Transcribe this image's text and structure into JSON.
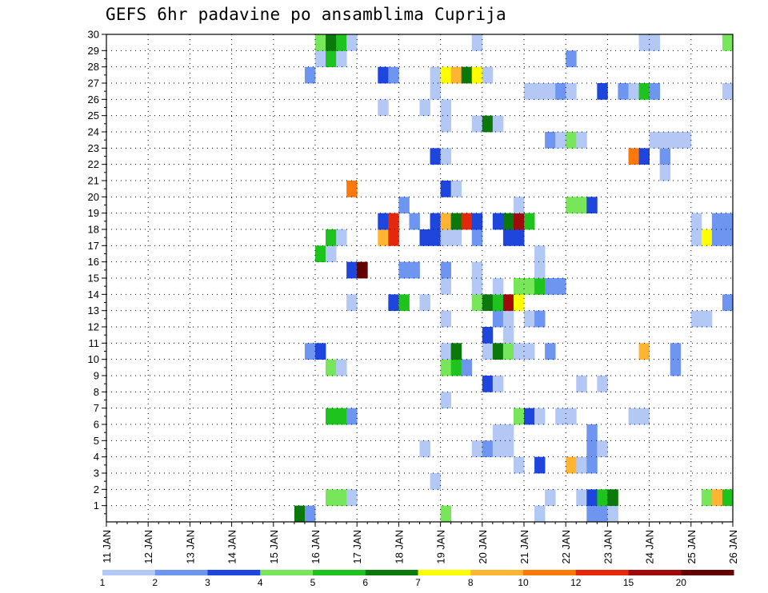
{
  "chart_data": {
    "type": "heatmap",
    "title": "GEFS 6hr padavine po ansamblima Cuprija",
    "xlabel": "",
    "ylabel": "",
    "x_range": [
      "11 JAN 00Z",
      "26 JAN 00Z"
    ],
    "x_ticks": [
      "11 JAN",
      "12 JAN",
      "13 JAN",
      "14 JAN",
      "15 JAN",
      "16 JAN",
      "17 JAN",
      "18 JAN",
      "19 JAN",
      "20 JAN",
      "21 JAN",
      "22 JAN",
      "23 JAN",
      "24 JAN",
      "25 JAN",
      "26 JAN"
    ],
    "y_ticks": [
      "1",
      "2",
      "3",
      "4",
      "5",
      "6",
      "7",
      "8",
      "9",
      "10",
      "11",
      "12",
      "13",
      "14",
      "15",
      "16",
      "17",
      "18",
      "19",
      "20",
      "21",
      "22",
      "23",
      "24",
      "25",
      "26",
      "27",
      "28",
      "29",
      "30"
    ],
    "y_range": [
      0,
      30
    ],
    "grid": true,
    "time_step_hours": 6,
    "levels": [
      "1",
      "2",
      "3",
      "4",
      "5",
      "6",
      "7",
      "8",
      "10",
      "12",
      "15",
      "20"
    ],
    "level_colors": [
      "#b4c8f5",
      "#6e96f0",
      "#1e46dc",
      "#78e65a",
      "#1ec31e",
      "#0a780a",
      "#ffff00",
      "#ffb432",
      "#ff780a",
      "#e6280a",
      "#a00a0a",
      "#640000"
    ],
    "cells": [
      {
        "m": 0,
        "t": "15 JAN 12Z",
        "c": 5
      },
      {
        "m": 0,
        "t": "15 JAN 18Z",
        "c": 1
      },
      {
        "m": 0,
        "t": "19 JAN 00Z",
        "c": 3
      },
      {
        "m": 0,
        "t": "21 JAN 06Z",
        "c": 0
      },
      {
        "m": 0,
        "t": "22 JAN 12Z",
        "c": 1
      },
      {
        "m": 0,
        "t": "22 JAN 18Z",
        "c": 1
      },
      {
        "m": 0,
        "t": "23 JAN 00Z",
        "c": 0
      },
      {
        "m": 1,
        "t": "16 JAN 06Z",
        "c": 3
      },
      {
        "m": 1,
        "t": "16 JAN 12Z",
        "c": 3
      },
      {
        "m": 1,
        "t": "16 JAN 18Z",
        "c": 0
      },
      {
        "m": 1,
        "t": "21 JAN 12Z",
        "c": 0
      },
      {
        "m": 1,
        "t": "22 JAN 06Z",
        "c": 0
      },
      {
        "m": 1,
        "t": "22 JAN 12Z",
        "c": 2
      },
      {
        "m": 1,
        "t": "22 JAN 18Z",
        "c": 4
      },
      {
        "m": 1,
        "t": "23 JAN 00Z",
        "c": 5
      },
      {
        "m": 1,
        "t": "25 JAN 06Z",
        "c": 3
      },
      {
        "m": 1,
        "t": "25 JAN 12Z",
        "c": 7
      },
      {
        "m": 1,
        "t": "25 JAN 18Z",
        "c": 4
      },
      {
        "m": 2,
        "t": "18 JAN 18Z",
        "c": 0
      },
      {
        "m": 3,
        "t": "20 JAN 18Z",
        "c": 0
      },
      {
        "m": 3,
        "t": "21 JAN 06Z",
        "c": 2
      },
      {
        "m": 3,
        "t": "22 JAN 00Z",
        "c": 7
      },
      {
        "m": 3,
        "t": "22 JAN 06Z",
        "c": 0
      },
      {
        "m": 3,
        "t": "22 JAN 12Z",
        "c": 1
      },
      {
        "m": 4,
        "t": "18 JAN 12Z",
        "c": 0
      },
      {
        "m": 4,
        "t": "19 JAN 18Z",
        "c": 0
      },
      {
        "m": 4,
        "t": "20 JAN 00Z",
        "c": 1
      },
      {
        "m": 4,
        "t": "20 JAN 06Z",
        "c": 0
      },
      {
        "m": 4,
        "t": "20 JAN 12Z",
        "c": 0
      },
      {
        "m": 4,
        "t": "22 JAN 12Z",
        "c": 1
      },
      {
        "m": 4,
        "t": "22 JAN 18Z",
        "c": 0
      },
      {
        "m": 5,
        "t": "20 JAN 06Z",
        "c": 0
      },
      {
        "m": 5,
        "t": "20 JAN 12Z",
        "c": 0
      },
      {
        "m": 5,
        "t": "22 JAN 12Z",
        "c": 1
      },
      {
        "m": 6,
        "t": "16 JAN 06Z",
        "c": 4
      },
      {
        "m": 6,
        "t": "16 JAN 12Z",
        "c": 4
      },
      {
        "m": 6,
        "t": "16 JAN 18Z",
        "c": 1
      },
      {
        "m": 6,
        "t": "20 JAN 18Z",
        "c": 3
      },
      {
        "m": 6,
        "t": "21 JAN 00Z",
        "c": 2
      },
      {
        "m": 6,
        "t": "21 JAN 06Z",
        "c": 0
      },
      {
        "m": 6,
        "t": "21 JAN 18Z",
        "c": 0
      },
      {
        "m": 6,
        "t": "22 JAN 00Z",
        "c": 0
      },
      {
        "m": 6,
        "t": "23 JAN 12Z",
        "c": 0
      },
      {
        "m": 6,
        "t": "23 JAN 18Z",
        "c": 0
      },
      {
        "m": 7,
        "t": "19 JAN 00Z",
        "c": 0
      },
      {
        "m": 8,
        "t": "20 JAN 00Z",
        "c": 2
      },
      {
        "m": 8,
        "t": "20 JAN 06Z",
        "c": 0
      },
      {
        "m": 8,
        "t": "22 JAN 06Z",
        "c": 0
      },
      {
        "m": 8,
        "t": "22 JAN 18Z",
        "c": 0
      },
      {
        "m": 9,
        "t": "16 JAN 06Z",
        "c": 3
      },
      {
        "m": 9,
        "t": "16 JAN 12Z",
        "c": 0
      },
      {
        "m": 9,
        "t": "19 JAN 00Z",
        "c": 3
      },
      {
        "m": 9,
        "t": "19 JAN 06Z",
        "c": 4
      },
      {
        "m": 9,
        "t": "19 JAN 12Z",
        "c": 1
      },
      {
        "m": 9,
        "t": "24 JAN 12Z",
        "c": 1
      },
      {
        "m": 10,
        "t": "15 JAN 18Z",
        "c": 1
      },
      {
        "m": 10,
        "t": "16 JAN 00Z",
        "c": 2
      },
      {
        "m": 10,
        "t": "19 JAN 00Z",
        "c": 0
      },
      {
        "m": 10,
        "t": "19 JAN 06Z",
        "c": 5
      },
      {
        "m": 10,
        "t": "20 JAN 00Z",
        "c": 0
      },
      {
        "m": 10,
        "t": "20 JAN 06Z",
        "c": 5
      },
      {
        "m": 10,
        "t": "20 JAN 12Z",
        "c": 3
      },
      {
        "m": 10,
        "t": "20 JAN 18Z",
        "c": 0
      },
      {
        "m": 10,
        "t": "21 JAN 00Z",
        "c": 0
      },
      {
        "m": 10,
        "t": "21 JAN 12Z",
        "c": 1
      },
      {
        "m": 10,
        "t": "23 JAN 18Z",
        "c": 7
      },
      {
        "m": 10,
        "t": "24 JAN 12Z",
        "c": 1
      },
      {
        "m": 11,
        "t": "20 JAN 00Z",
        "c": 2
      },
      {
        "m": 11,
        "t": "20 JAN 12Z",
        "c": 0
      },
      {
        "m": 12,
        "t": "19 JAN 00Z",
        "c": 0
      },
      {
        "m": 12,
        "t": "20 JAN 06Z",
        "c": 1
      },
      {
        "m": 12,
        "t": "20 JAN 12Z",
        "c": 0
      },
      {
        "m": 12,
        "t": "21 JAN 00Z",
        "c": 0
      },
      {
        "m": 12,
        "t": "21 JAN 06Z",
        "c": 1
      },
      {
        "m": 12,
        "t": "25 JAN 00Z",
        "c": 0
      },
      {
        "m": 12,
        "t": "25 JAN 06Z",
        "c": 0
      },
      {
        "m": 13,
        "t": "16 JAN 18Z",
        "c": 0
      },
      {
        "m": 13,
        "t": "17 JAN 18Z",
        "c": 2
      },
      {
        "m": 13,
        "t": "18 JAN 00Z",
        "c": 4
      },
      {
        "m": 13,
        "t": "18 JAN 12Z",
        "c": 0
      },
      {
        "m": 13,
        "t": "19 JAN 18Z",
        "c": 3
      },
      {
        "m": 13,
        "t": "20 JAN 00Z",
        "c": 5
      },
      {
        "m": 13,
        "t": "20 JAN 06Z",
        "c": 4
      },
      {
        "m": 13,
        "t": "20 JAN 12Z",
        "c": 10
      },
      {
        "m": 13,
        "t": "20 JAN 18Z",
        "c": 6
      },
      {
        "m": 13,
        "t": "25 JAN 18Z",
        "c": 1
      },
      {
        "m": 14,
        "t": "19 JAN 00Z",
        "c": 0
      },
      {
        "m": 14,
        "t": "19 JAN 18Z",
        "c": 0
      },
      {
        "m": 14,
        "t": "20 JAN 06Z",
        "c": 0
      },
      {
        "m": 14,
        "t": "20 JAN 18Z",
        "c": 3
      },
      {
        "m": 14,
        "t": "21 JAN 00Z",
        "c": 3
      },
      {
        "m": 14,
        "t": "21 JAN 06Z",
        "c": 4
      },
      {
        "m": 14,
        "t": "21 JAN 12Z",
        "c": 1
      },
      {
        "m": 14,
        "t": "21 JAN 18Z",
        "c": 1
      },
      {
        "m": 15,
        "t": "16 JAN 18Z",
        "c": 2
      },
      {
        "m": 15,
        "t": "17 JAN 00Z",
        "c": 11
      },
      {
        "m": 15,
        "t": "18 JAN 00Z",
        "c": 1
      },
      {
        "m": 15,
        "t": "18 JAN 06Z",
        "c": 1
      },
      {
        "m": 15,
        "t": "19 JAN 00Z",
        "c": 1
      },
      {
        "m": 15,
        "t": "19 JAN 18Z",
        "c": 0
      },
      {
        "m": 15,
        "t": "21 JAN 06Z",
        "c": 0
      },
      {
        "m": 16,
        "t": "16 JAN 00Z",
        "c": 4
      },
      {
        "m": 16,
        "t": "16 JAN 06Z",
        "c": 0
      },
      {
        "m": 16,
        "t": "21 JAN 06Z",
        "c": 0
      },
      {
        "m": 17,
        "t": "16 JAN 06Z",
        "c": 4
      },
      {
        "m": 17,
        "t": "16 JAN 12Z",
        "c": 0
      },
      {
        "m": 17,
        "t": "17 JAN 12Z",
        "c": 7
      },
      {
        "m": 17,
        "t": "17 JAN 18Z",
        "c": 9
      },
      {
        "m": 17,
        "t": "18 JAN 12Z",
        "c": 2
      },
      {
        "m": 17,
        "t": "18 JAN 18Z",
        "c": 2
      },
      {
        "m": 17,
        "t": "19 JAN 00Z",
        "c": 0
      },
      {
        "m": 17,
        "t": "19 JAN 06Z",
        "c": 0
      },
      {
        "m": 17,
        "t": "19 JAN 18Z",
        "c": 1
      },
      {
        "m": 17,
        "t": "20 JAN 12Z",
        "c": 2
      },
      {
        "m": 17,
        "t": "20 JAN 18Z",
        "c": 2
      },
      {
        "m": 17,
        "t": "25 JAN 00Z",
        "c": 0
      },
      {
        "m": 17,
        "t": "25 JAN 06Z",
        "c": 6
      },
      {
        "m": 17,
        "t": "25 JAN 12Z",
        "c": 1
      },
      {
        "m": 17,
        "t": "25 JAN 18Z",
        "c": 1
      },
      {
        "m": 18,
        "t": "17 JAN 12Z",
        "c": 2
      },
      {
        "m": 18,
        "t": "17 JAN 18Z",
        "c": 9
      },
      {
        "m": 18,
        "t": "18 JAN 06Z",
        "c": 1
      },
      {
        "m": 18,
        "t": "18 JAN 18Z",
        "c": 2
      },
      {
        "m": 18,
        "t": "19 JAN 00Z",
        "c": 7
      },
      {
        "m": 18,
        "t": "19 JAN 06Z",
        "c": 5
      },
      {
        "m": 18,
        "t": "19 JAN 12Z",
        "c": 9
      },
      {
        "m": 18,
        "t": "19 JAN 18Z",
        "c": 2
      },
      {
        "m": 18,
        "t": "20 JAN 06Z",
        "c": 2
      },
      {
        "m": 18,
        "t": "20 JAN 12Z",
        "c": 5
      },
      {
        "m": 18,
        "t": "20 JAN 18Z",
        "c": 10
      },
      {
        "m": 18,
        "t": "21 JAN 00Z",
        "c": 4
      },
      {
        "m": 18,
        "t": "25 JAN 00Z",
        "c": 0
      },
      {
        "m": 18,
        "t": "25 JAN 12Z",
        "c": 1
      },
      {
        "m": 18,
        "t": "25 JAN 18Z",
        "c": 1
      },
      {
        "m": 19,
        "t": "18 JAN 00Z",
        "c": 1
      },
      {
        "m": 19,
        "t": "20 JAN 18Z",
        "c": 0
      },
      {
        "m": 19,
        "t": "22 JAN 00Z",
        "c": 3
      },
      {
        "m": 19,
        "t": "22 JAN 06Z",
        "c": 3
      },
      {
        "m": 19,
        "t": "22 JAN 12Z",
        "c": 2
      },
      {
        "m": 20,
        "t": "16 JAN 18Z",
        "c": 8
      },
      {
        "m": 20,
        "t": "19 JAN 00Z",
        "c": 2
      },
      {
        "m": 20,
        "t": "19 JAN 06Z",
        "c": 0
      },
      {
        "m": 21,
        "t": "24 JAN 06Z",
        "c": 0
      },
      {
        "m": 22,
        "t": "18 JAN 18Z",
        "c": 2
      },
      {
        "m": 22,
        "t": "19 JAN 00Z",
        "c": 0
      },
      {
        "m": 22,
        "t": "23 JAN 12Z",
        "c": 8
      },
      {
        "m": 22,
        "t": "23 JAN 18Z",
        "c": 2
      },
      {
        "m": 22,
        "t": "24 JAN 06Z",
        "c": 1
      },
      {
        "m": 23,
        "t": "21 JAN 12Z",
        "c": 1
      },
      {
        "m": 23,
        "t": "21 JAN 18Z",
        "c": 0
      },
      {
        "m": 23,
        "t": "22 JAN 00Z",
        "c": 3
      },
      {
        "m": 23,
        "t": "22 JAN 06Z",
        "c": 0
      },
      {
        "m": 23,
        "t": "24 JAN 00Z",
        "c": 0
      },
      {
        "m": 23,
        "t": "24 JAN 06Z",
        "c": 0
      },
      {
        "m": 23,
        "t": "24 JAN 12Z",
        "c": 0
      },
      {
        "m": 23,
        "t": "24 JAN 18Z",
        "c": 0
      },
      {
        "m": 24,
        "t": "19 JAN 00Z",
        "c": 0
      },
      {
        "m": 24,
        "t": "19 JAN 18Z",
        "c": 0
      },
      {
        "m": 24,
        "t": "20 JAN 00Z",
        "c": 5
      },
      {
        "m": 24,
        "t": "20 JAN 06Z",
        "c": 0
      },
      {
        "m": 25,
        "t": "17 JAN 12Z",
        "c": 0
      },
      {
        "m": 25,
        "t": "18 JAN 12Z",
        "c": 0
      },
      {
        "m": 25,
        "t": "19 JAN 00Z",
        "c": 0
      },
      {
        "m": 26,
        "t": "18 JAN 18Z",
        "c": 0
      },
      {
        "m": 26,
        "t": "21 JAN 00Z",
        "c": 0
      },
      {
        "m": 26,
        "t": "21 JAN 06Z",
        "c": 0
      },
      {
        "m": 26,
        "t": "21 JAN 12Z",
        "c": 0
      },
      {
        "m": 26,
        "t": "21 JAN 18Z",
        "c": 1
      },
      {
        "m": 26,
        "t": "22 JAN 00Z",
        "c": 0
      },
      {
        "m": 26,
        "t": "22 JAN 18Z",
        "c": 2
      },
      {
        "m": 26,
        "t": "23 JAN 06Z",
        "c": 1
      },
      {
        "m": 26,
        "t": "23 JAN 12Z",
        "c": 0
      },
      {
        "m": 26,
        "t": "23 JAN 18Z",
        "c": 4
      },
      {
        "m": 26,
        "t": "24 JAN 00Z",
        "c": 1
      },
      {
        "m": 26,
        "t": "25 JAN 18Z",
        "c": 0
      },
      {
        "m": 27,
        "t": "15 JAN 18Z",
        "c": 1
      },
      {
        "m": 27,
        "t": "17 JAN 12Z",
        "c": 2
      },
      {
        "m": 27,
        "t": "17 JAN 18Z",
        "c": 1
      },
      {
        "m": 27,
        "t": "18 JAN 18Z",
        "c": 0
      },
      {
        "m": 27,
        "t": "19 JAN 00Z",
        "c": 6
      },
      {
        "m": 27,
        "t": "19 JAN 06Z",
        "c": 7
      },
      {
        "m": 27,
        "t": "19 JAN 12Z",
        "c": 5
      },
      {
        "m": 27,
        "t": "19 JAN 18Z",
        "c": 6
      },
      {
        "m": 27,
        "t": "20 JAN 00Z",
        "c": 0
      },
      {
        "m": 28,
        "t": "16 JAN 00Z",
        "c": 0
      },
      {
        "m": 28,
        "t": "16 JAN 06Z",
        "c": 4
      },
      {
        "m": 28,
        "t": "16 JAN 12Z",
        "c": 0
      },
      {
        "m": 28,
        "t": "22 JAN 00Z",
        "c": 1
      },
      {
        "m": 29,
        "t": "16 JAN 00Z",
        "c": 3
      },
      {
        "m": 29,
        "t": "16 JAN 06Z",
        "c": 5
      },
      {
        "m": 29,
        "t": "16 JAN 12Z",
        "c": 4
      },
      {
        "m": 29,
        "t": "16 JAN 18Z",
        "c": 0
      },
      {
        "m": 29,
        "t": "19 JAN 18Z",
        "c": 0
      },
      {
        "m": 29,
        "t": "23 JAN 18Z",
        "c": 0
      },
      {
        "m": 29,
        "t": "24 JAN 00Z",
        "c": 0
      },
      {
        "m": 29,
        "t": "25 JAN 18Z",
        "c": 3
      }
    ]
  }
}
